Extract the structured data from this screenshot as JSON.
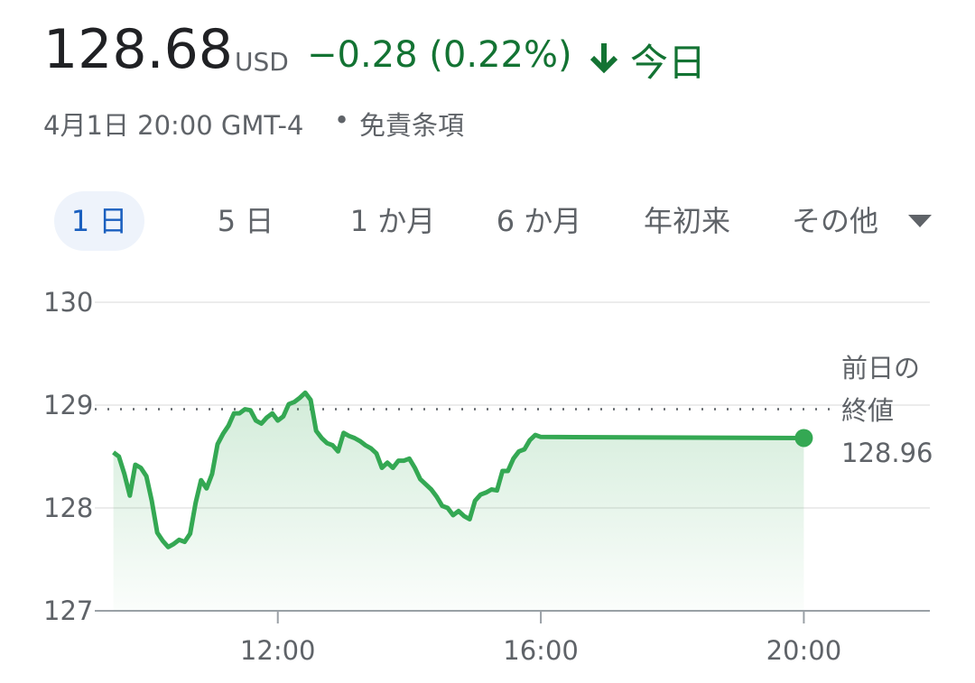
{
  "header": {
    "price": "128.68",
    "currency": "USD",
    "change": "−0.28 (0.22%)",
    "period": "今日",
    "timestamp": "4月1日 20:00 GMT-4",
    "separator": "•",
    "disclaimer": "免責条項"
  },
  "tabs": [
    "1 日",
    "5 日",
    "1 か月",
    "6 か月",
    "年初来",
    "その他"
  ],
  "selected_tab": 0,
  "chart_data": {
    "type": "line",
    "x": [
      "09:30",
      "09:35",
      "09:40",
      "09:45",
      "09:50",
      "09:55",
      "10:00",
      "10:05",
      "10:10",
      "10:15",
      "10:20",
      "10:25",
      "10:30",
      "10:35",
      "10:40",
      "10:45",
      "10:50",
      "10:55",
      "11:00",
      "11:05",
      "11:10",
      "11:15",
      "11:20",
      "11:25",
      "11:30",
      "11:35",
      "11:40",
      "11:45",
      "11:50",
      "11:55",
      "12:00",
      "12:05",
      "12:10",
      "12:15",
      "12:20",
      "12:25",
      "12:30",
      "12:35",
      "12:40",
      "12:45",
      "12:50",
      "12:55",
      "13:00",
      "13:05",
      "13:10",
      "13:15",
      "13:20",
      "13:25",
      "13:30",
      "13:35",
      "13:40",
      "13:45",
      "13:50",
      "13:55",
      "14:00",
      "14:05",
      "14:10",
      "14:15",
      "14:20",
      "14:25",
      "14:30",
      "14:35",
      "14:40",
      "14:45",
      "14:50",
      "14:55",
      "15:00",
      "15:05",
      "15:10",
      "15:15",
      "15:20",
      "15:25",
      "15:30",
      "15:35",
      "15:40",
      "15:45",
      "15:50",
      "15:55",
      "16:00",
      "20:00"
    ],
    "values": [
      128.54,
      128.5,
      128.33,
      128.12,
      128.42,
      128.39,
      128.31,
      128.07,
      127.76,
      127.68,
      127.62,
      127.65,
      127.69,
      127.67,
      127.75,
      128.05,
      128.27,
      128.19,
      128.33,
      128.62,
      128.72,
      128.8,
      128.92,
      128.92,
      128.96,
      128.95,
      128.85,
      128.82,
      128.88,
      128.92,
      128.85,
      128.89,
      129.01,
      129.03,
      129.07,
      129.12,
      129.05,
      128.75,
      128.68,
      128.63,
      128.61,
      128.55,
      128.73,
      128.7,
      128.68,
      128.65,
      128.61,
      128.58,
      128.53,
      128.39,
      128.44,
      128.39,
      128.46,
      128.46,
      128.48,
      128.39,
      128.28,
      128.23,
      128.18,
      128.11,
      128.02,
      128.0,
      127.93,
      127.97,
      127.92,
      127.89,
      128.07,
      128.13,
      128.15,
      128.18,
      128.17,
      128.36,
      128.36,
      128.48,
      128.55,
      128.57,
      128.66,
      128.71,
      128.69,
      128.68
    ],
    "color": "#34a853",
    "xlim": [
      "09:13",
      "21:55"
    ],
    "xticks": [
      "12:00",
      "16:00",
      "20:00"
    ],
    "ylim": [
      127,
      130
    ],
    "yticks": [
      127,
      128,
      129,
      130
    ],
    "grid": true,
    "reference": {
      "label": [
        "前日の",
        "終値"
      ],
      "value": 128.96
    }
  }
}
